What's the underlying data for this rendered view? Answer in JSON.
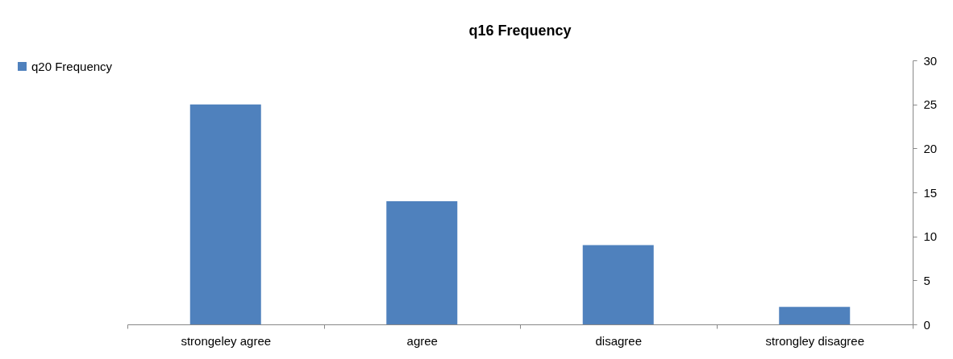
{
  "chart_data": {
    "type": "bar",
    "title": "q16 Frequency",
    "categories": [
      "strongeley agree",
      "agree",
      "disagree",
      "strongley disagree"
    ],
    "series": [
      {
        "name": "q20 Frequency",
        "color": "#4f81bd",
        "values": [
          25,
          14,
          9,
          2
        ]
      }
    ],
    "ylim": [
      0,
      30
    ],
    "yticks": [
      0,
      5,
      10,
      15,
      20,
      25,
      30
    ],
    "grid": false,
    "legend": "left"
  }
}
